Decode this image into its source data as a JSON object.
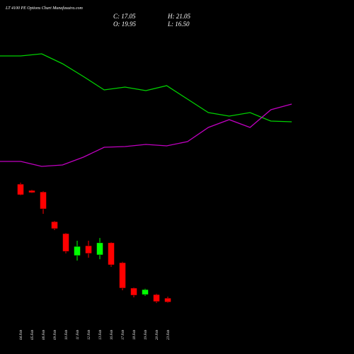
{
  "header": {
    "title": "LT 4100 PE Options Chart Munafasutra.com",
    "ohlc": [
      "C: 17.05",
      "O: 19.95",
      "H: 21.05",
      "L: 16.50"
    ]
  },
  "chart_data": [
    {
      "type": "line",
      "ylim": [
        0,
        200
      ],
      "series": [
        {
          "color": "#00d000",
          "values": [
            171,
            171,
            174,
            160,
            142,
            123,
            127,
            122,
            129,
            110,
            91,
            86,
            91,
            79,
            78
          ]
        },
        {
          "color": "#c000c0",
          "values": [
            22,
            22,
            15,
            17,
            28,
            42,
            43,
            46,
            44,
            50,
            70,
            81,
            70,
            95,
            103
          ]
        }
      ]
    },
    {
      "type": "candlestick",
      "ylim": [
        10,
        110
      ],
      "up_color": "#00ff00",
      "down_color": "#ff0000",
      "categories": [
        "04 Feb",
        "05 Feb",
        "06 Feb",
        "09 Feb",
        "10 Feb",
        "11 Feb",
        "12 Feb",
        "13 Feb",
        "16 Feb",
        "17 Feb",
        "18 Feb",
        "19 Feb",
        "20 Feb",
        "23 Feb"
      ],
      "open": [
        104.7,
        100,
        98.9,
        76.8,
        67.9,
        51.6,
        58.9,
        52.1,
        61.1,
        46.3,
        27.4,
        22.6,
        22.6,
        19.95
      ],
      "high": [
        105.8,
        100.5,
        99.5,
        77.4,
        68.4,
        62.6,
        62.6,
        64.7,
        61.6,
        47,
        27.9,
        27,
        23.2,
        21.05
      ],
      "low": [
        96.3,
        98,
        82.6,
        70.5,
        53.2,
        47.9,
        50,
        48.9,
        43.2,
        25.8,
        20.5,
        21.6,
        16.3,
        16.5
      ],
      "close": [
        96.8,
        98.4,
        86.3,
        71.6,
        54.7,
        58.4,
        53.2,
        61.1,
        44.7,
        27.4,
        22.1,
        26.3,
        17.4,
        17.05
      ]
    }
  ]
}
